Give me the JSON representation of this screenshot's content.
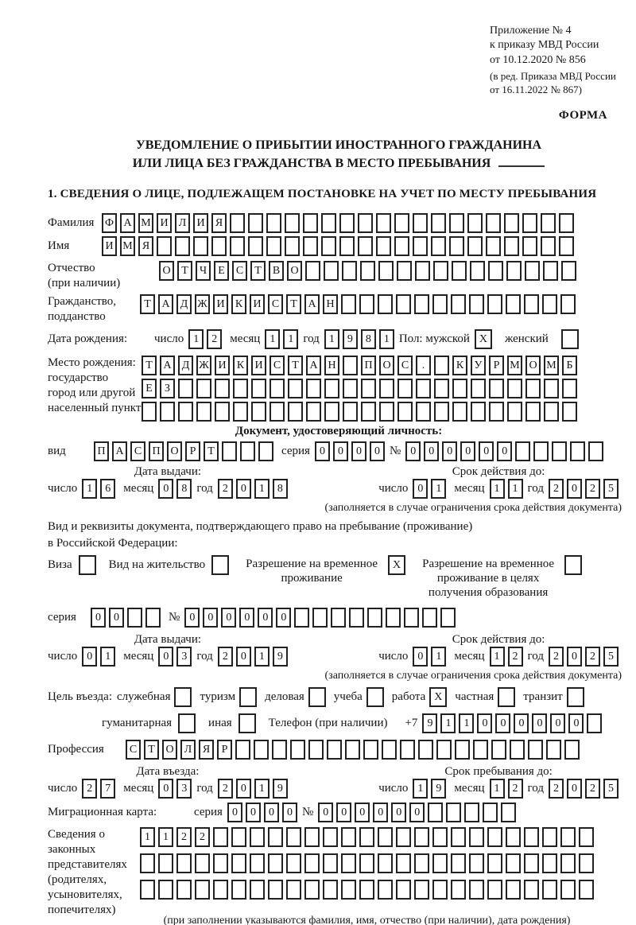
{
  "page": {
    "appendix": [
      "Приложение № 4",
      "к приказу МВД России",
      "от 10.12.2020 № 856"
    ],
    "amendment": [
      "(в ред. Приказа МВД России",
      "от 16.11.2022 № 867)"
    ],
    "forma": "ФОРМА",
    "title1": "УВЕДОМЛЕНИЕ О ПРИБЫТИИ ИНОСТРАННОГО ГРАЖДАНИНА",
    "title2": "ИЛИ ЛИЦА БЕЗ ГРАЖДАНСТВА В МЕСТО ПРЕБЫВАНИЯ",
    "section1": "1. СВЕДЕНИЯ О ЛИЦЕ, ПОДЛЕЖАЩЕМ ПОСТАНОВКЕ НА УЧЕТ ПО МЕСТУ ПРЕБЫВАНИЯ"
  },
  "labels": {
    "surname": "Фамилия",
    "name": "Имя",
    "patronymic": "Отчество",
    "patronymic_note": "(при наличии)",
    "citizenship1": "Гражданство,",
    "citizenship2": "подданство",
    "birth_date": "Дата рождения:",
    "day": "число",
    "month": "месяц",
    "year": "год",
    "sex_male": "Пол: мужской",
    "sex_female": "женский",
    "birth_place": "Место рождения:",
    "bp_state": "государство",
    "bp_city": "город или другой",
    "bp_settlement": "населенный пункт",
    "identity_heading": "Документ, удостоверяющий личность:",
    "kind": "вид",
    "series": "серия",
    "number": "№",
    "issue_date": "Дата выдачи:",
    "valid_until": "Срок действия до:",
    "validity_note": "(заполняется в случае ограничения срока действия документа)",
    "residence_line1": "Вид и реквизиты документа, подтверждающего право на пребывание (проживание)",
    "residence_line2": "в Российской Федерации:",
    "purpose": "Цель въезда:",
    "phone": "Телефон (при наличии)",
    "phone_prefix": "+7",
    "profession": "Профессия",
    "entry_date": "Дата въезда:",
    "stay_until": "Срок пребывания до:",
    "migration_card": "Миграционная карта:",
    "legal_lines": [
      "Сведения о",
      "законных",
      "представителях",
      "(родителях,",
      "усыновителях,",
      "попечителях)"
    ],
    "legal_note": "(при заполнении указываются фамилия, имя, отчество (при наличии), дата рождения)"
  },
  "fields": {
    "surname": {
      "chars": "ФАМИЛИЯ",
      "count": 26
    },
    "name": {
      "chars": "ИМЯ",
      "count": 26
    },
    "patronymic": {
      "chars": "ОТЧЕСТВО",
      "count": 23
    },
    "citizenship": {
      "chars": "ТАДЖИКИСТАН",
      "count": 24
    },
    "birth": {
      "day": "12",
      "month": "11",
      "year": "1981"
    },
    "sex": {
      "male": true,
      "female": false
    },
    "birthplace_rows": [
      {
        "chars": "ТАДЖИКИСТАН ПОС. КУРМОМБ",
        "count": 24
      },
      {
        "chars": "ЕЗ",
        "count": 24
      },
      {
        "chars": "",
        "count": 24
      }
    ],
    "identity": {
      "kind": {
        "chars": "ПАСПОРТ",
        "count": 10
      },
      "series": {
        "chars": "0000",
        "count": 4
      },
      "number": {
        "chars": "000000",
        "count": 11
      },
      "issue": {
        "day": "16",
        "month": "08",
        "year": "2018"
      },
      "valid": {
        "day": "01",
        "month": "11",
        "year": "2025"
      }
    },
    "residence": {
      "options": [
        {
          "label": "Виза",
          "checked": false
        },
        {
          "label": "Вид на жительство",
          "checked": false
        },
        {
          "label": "Разрешение на временное проживание",
          "checked": true
        },
        {
          "label": "Разрешение на временное проживание в целях получения образования",
          "checked": false
        }
      ],
      "series": {
        "chars": "00",
        "count": 4
      },
      "number": {
        "chars": "000000",
        "count": 15
      },
      "issue": {
        "day": "01",
        "month": "03",
        "year": "2019"
      },
      "valid": {
        "day": "01",
        "month": "12",
        "year": "2025"
      }
    },
    "purpose_options": [
      {
        "label": "служебная",
        "checked": false
      },
      {
        "label": "туризм",
        "checked": false
      },
      {
        "label": "деловая",
        "checked": false
      },
      {
        "label": "учеба",
        "checked": false
      },
      {
        "label": "работа",
        "checked": true
      },
      {
        "label": "частная",
        "checked": false
      },
      {
        "label": "транзит",
        "checked": false
      }
    ],
    "purpose_options2": [
      {
        "label": "гуманитарная",
        "checked": false
      },
      {
        "label": "иная",
        "checked": false
      }
    ],
    "phone": {
      "chars": "911000000",
      "count": 10
    },
    "profession": {
      "chars": "СТОЛЯР",
      "count": 25
    },
    "entry": {
      "day": "27",
      "month": "03",
      "year": "2019"
    },
    "stay": {
      "day": "19",
      "month": "12",
      "year": "2025"
    },
    "migration": {
      "series": {
        "chars": "0000",
        "count": 4
      },
      "number": {
        "chars": "000000",
        "count": 11
      }
    },
    "legal_rows": [
      {
        "chars": "1122",
        "count": 25
      },
      {
        "chars": "",
        "count": 25
      },
      {
        "chars": "",
        "count": 25
      }
    ]
  }
}
